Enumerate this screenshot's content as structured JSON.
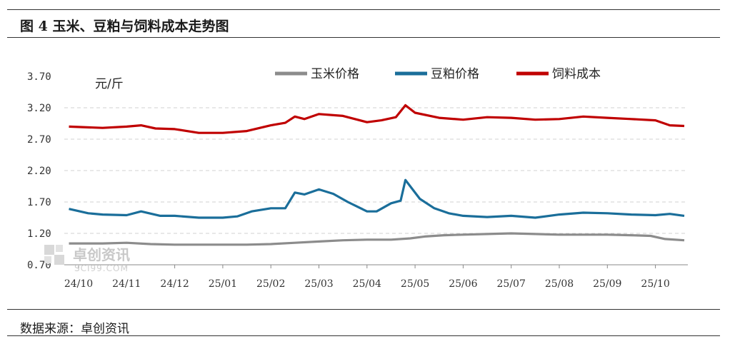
{
  "title": "图 4  玉米、豆粕与饲料成本走势图",
  "source": "数据来源：卓创资讯",
  "watermark": {
    "name": "卓创资讯",
    "url": "SCI99.COM"
  },
  "colors": {
    "corn": "#8c8c8c",
    "soymeal": "#1a6e9a",
    "feed": "#c00000",
    "grid": "#d0d0d0"
  },
  "chart_data": {
    "type": "line",
    "unit_label": "元/斤",
    "ylim": [
      0.7,
      3.7
    ],
    "yticks": [
      "3.70",
      "3.20",
      "2.70",
      "2.20",
      "1.70",
      "1.20",
      "0.70"
    ],
    "yticks_values": [
      3.7,
      3.2,
      2.7,
      2.2,
      1.7,
      1.2,
      0.7
    ],
    "grid": true,
    "legend_position": "top",
    "x_tick_labels": [
      "24/10",
      "24/11",
      "24/12",
      "25/01",
      "25/02",
      "25/03",
      "25/04",
      "25/05",
      "25/06",
      "25/07",
      "25/08",
      "25/09",
      "25/10"
    ],
    "x_month_index": [
      0,
      1,
      2,
      3,
      4,
      5,
      6,
      7,
      8,
      9,
      10,
      11,
      12
    ],
    "series": [
      {
        "name": "玉米价格",
        "color": "#8c8c8c",
        "x": [
          -0.2,
          0.5,
          1.0,
          1.5,
          2.0,
          2.5,
          3.0,
          3.5,
          4.0,
          4.5,
          5.0,
          5.5,
          6.0,
          6.5,
          6.9,
          7.2,
          7.6,
          8.0,
          8.5,
          9.0,
          9.5,
          10.0,
          10.5,
          11.0,
          11.5,
          11.9,
          12.2,
          12.6
        ],
        "values": [
          1.04,
          1.04,
          1.05,
          1.03,
          1.02,
          1.02,
          1.02,
          1.02,
          1.03,
          1.05,
          1.07,
          1.09,
          1.1,
          1.1,
          1.12,
          1.15,
          1.17,
          1.18,
          1.19,
          1.2,
          1.19,
          1.18,
          1.18,
          1.18,
          1.17,
          1.16,
          1.11,
          1.09
        ]
      },
      {
        "name": "豆粕价格",
        "color": "#1a6e9a",
        "x": [
          -0.2,
          0.2,
          0.5,
          1.0,
          1.3,
          1.7,
          2.0,
          2.5,
          3.0,
          3.3,
          3.6,
          4.0,
          4.3,
          4.5,
          4.7,
          5.0,
          5.3,
          5.6,
          6.0,
          6.2,
          6.5,
          6.7,
          6.8,
          7.1,
          7.4,
          7.7,
          8.0,
          8.5,
          9.0,
          9.5,
          10.0,
          10.5,
          11.0,
          11.5,
          12.0,
          12.3,
          12.6
        ],
        "values": [
          1.59,
          1.52,
          1.5,
          1.49,
          1.55,
          1.48,
          1.48,
          1.45,
          1.45,
          1.47,
          1.55,
          1.6,
          1.6,
          1.85,
          1.82,
          1.9,
          1.83,
          1.7,
          1.55,
          1.55,
          1.68,
          1.72,
          2.05,
          1.75,
          1.6,
          1.52,
          1.48,
          1.46,
          1.48,
          1.45,
          1.5,
          1.53,
          1.52,
          1.5,
          1.49,
          1.51,
          1.48
        ]
      },
      {
        "name": "饲料成本",
        "color": "#c00000",
        "x": [
          -0.2,
          0.5,
          1.0,
          1.3,
          1.6,
          2.0,
          2.5,
          3.0,
          3.5,
          4.0,
          4.3,
          4.5,
          4.7,
          5.0,
          5.5,
          6.0,
          6.3,
          6.6,
          6.8,
          7.0,
          7.5,
          8.0,
          8.5,
          9.0,
          9.5,
          10.0,
          10.5,
          11.0,
          11.5,
          12.0,
          12.3,
          12.6
        ],
        "values": [
          2.9,
          2.88,
          2.9,
          2.92,
          2.87,
          2.86,
          2.8,
          2.8,
          2.83,
          2.92,
          2.96,
          3.06,
          3.02,
          3.1,
          3.07,
          2.97,
          3.0,
          3.05,
          3.24,
          3.12,
          3.04,
          3.01,
          3.05,
          3.04,
          3.01,
          3.02,
          3.06,
          3.04,
          3.02,
          3.0,
          2.92,
          2.91
        ]
      }
    ]
  }
}
